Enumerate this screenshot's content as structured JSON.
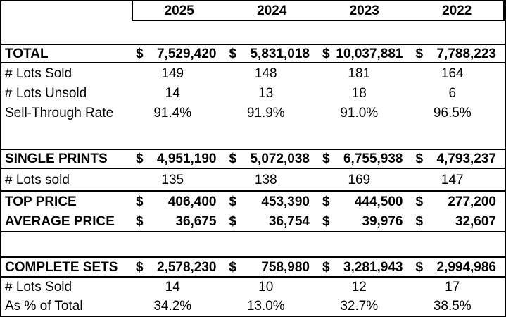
{
  "table": {
    "currency_symbol": "$",
    "columns": [
      "2025",
      "2024",
      "2023",
      "2022"
    ],
    "rows": {
      "total": {
        "label": "TOTAL",
        "values": [
          "7,529,420",
          "5,831,018",
          "10,037,881",
          "7,788,223"
        ]
      },
      "lots_sold": {
        "label": "# Lots Sold",
        "values": [
          "149",
          "148",
          "181",
          "164"
        ]
      },
      "lots_unsold": {
        "label": "# Lots Unsold",
        "values": [
          "14",
          "13",
          "18",
          "6"
        ]
      },
      "sell_through": {
        "label": "Sell-Through Rate",
        "values": [
          "91.4%",
          "91.9%",
          "91.0%",
          "96.5%"
        ]
      },
      "single_prints": {
        "label": "SINGLE PRINTS",
        "values": [
          "4,951,190",
          "5,072,038",
          "6,755,938",
          "4,793,237"
        ]
      },
      "sp_lots_sold": {
        "label": "# Lots sold",
        "values": [
          "135",
          "138",
          "169",
          "147"
        ]
      },
      "top_price": {
        "label": "TOP PRICE",
        "values": [
          "406,400",
          "453,390",
          "444,500",
          "277,200"
        ]
      },
      "average_price": {
        "label": "AVERAGE PRICE",
        "values": [
          "36,675",
          "36,754",
          "39,976",
          "32,607"
        ]
      },
      "complete_sets": {
        "label": "COMPLETE SETS",
        "values": [
          "2,578,230",
          "758,980",
          "3,281,943",
          "2,994,986"
        ]
      },
      "cs_lots_sold": {
        "label": "# Lots Sold",
        "values": [
          "14",
          "10",
          "12",
          "17"
        ]
      },
      "pct_of_total": {
        "label": "As % of Total",
        "values": [
          "34.2%",
          "13.0%",
          "32.7%",
          "38.5%"
        ]
      }
    },
    "colors": {
      "border": "#000000",
      "text": "#000000",
      "background": "#ffffff"
    }
  }
}
